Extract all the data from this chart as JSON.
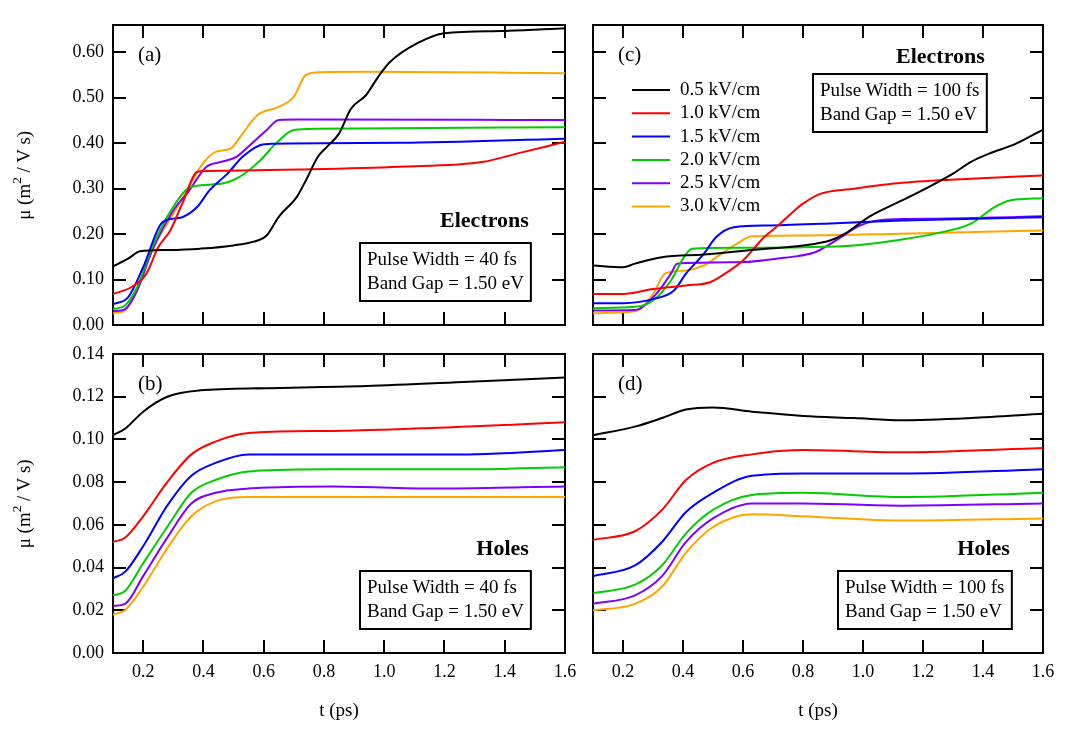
{
  "chart_data": [
    {
      "type": "line",
      "ylabel": "μ (m$^{2}$ / V s)",
      "xlim": [
        0.1,
        1.6
      ],
      "ylim": [
        0,
        0.66
      ],
      "xticks": [
        {
          "value": 0.2,
          "label": null
        },
        {
          "value": 0.4,
          "label": null
        },
        {
          "value": 0.6,
          "label": null
        },
        {
          "value": 0.8,
          "label": null
        },
        {
          "value": 1,
          "label": null
        },
        {
          "value": 1.2,
          "label": null
        },
        {
          "value": 1.4,
          "label": null
        },
        {
          "value": 1.6,
          "label": null
        }
      ],
      "yticks": [
        {
          "value": 0,
          "label": "0.00"
        },
        {
          "value": 0.1,
          "label": "0.10"
        },
        {
          "value": 0.2,
          "label": "0.20"
        },
        {
          "value": 0.3,
          "label": "0.30"
        },
        {
          "value": 0.4,
          "label": "0.40"
        },
        {
          "value": 0.5,
          "label": "0.50"
        },
        {
          "value": 0.6,
          "label": "0.60"
        }
      ],
      "tick_labels": "y",
      "annotations": [
        "(a)",
        "Electrons",
        "Pulse Width = 40 fs",
        "Band Gap = 1.50 eV"
      ],
      "series": [
        {
          "color": "#000000",
          "x": [
            0.1,
            0.15,
            0.19,
            0.28,
            0.39,
            0.5,
            0.58,
            0.61,
            0.65,
            0.71,
            0.74,
            0.78,
            0.81,
            0.85,
            0.89,
            0.94,
            0.98,
            1.02,
            1.11,
            1.2,
            1.39,
            1.6
          ],
          "values": [
            0.129,
            0.146,
            0.162,
            0.165,
            0.168,
            0.175,
            0.186,
            0.197,
            0.238,
            0.282,
            0.318,
            0.37,
            0.392,
            0.421,
            0.476,
            0.506,
            0.546,
            0.579,
            0.62,
            0.642,
            0.647,
            0.653
          ]
        },
        {
          "color": "#ff0000",
          "x": [
            0.1,
            0.16,
            0.21,
            0.25,
            0.29,
            0.33,
            0.38,
            0.41,
            0.72,
            1.05,
            1.33,
            1.44,
            1.6
          ],
          "values": [
            0.068,
            0.083,
            0.112,
            0.171,
            0.208,
            0.267,
            0.337,
            0.339,
            0.342,
            0.348,
            0.359,
            0.377,
            0.403
          ]
        },
        {
          "color": "#0000ff",
          "x": [
            0.1,
            0.15,
            0.2,
            0.26,
            0.3,
            0.33,
            0.38,
            0.42,
            0.48,
            0.53,
            0.59,
            0.63,
            1.05,
            1.6
          ],
          "values": [
            0.046,
            0.061,
            0.127,
            0.223,
            0.234,
            0.237,
            0.26,
            0.296,
            0.333,
            0.37,
            0.396,
            0.399,
            0.401,
            0.41
          ]
        },
        {
          "color": "#00cc00",
          "x": [
            0.1,
            0.14,
            0.18,
            0.23,
            0.3,
            0.36,
            0.45,
            0.52,
            0.59,
            0.64,
            0.7,
            0.78,
            1.6
          ],
          "values": [
            0.035,
            0.043,
            0.083,
            0.171,
            0.26,
            0.304,
            0.31,
            0.326,
            0.363,
            0.399,
            0.429,
            0.432,
            0.435
          ]
        },
        {
          "color": "#8000ff",
          "x": [
            0.1,
            0.14,
            0.18,
            0.23,
            0.3,
            0.35,
            0.41,
            0.46,
            0.51,
            0.56,
            0.61,
            0.65,
            0.72,
            1.6
          ],
          "values": [
            0.03,
            0.035,
            0.076,
            0.164,
            0.252,
            0.293,
            0.348,
            0.359,
            0.37,
            0.399,
            0.429,
            0.451,
            0.452,
            0.451
          ]
        },
        {
          "color": "#ffa500",
          "x": [
            0.1,
            0.14,
            0.18,
            0.23,
            0.3,
            0.34,
            0.39,
            0.44,
            0.49,
            0.53,
            0.58,
            0.65,
            0.7,
            0.74,
            0.79,
            0.94,
            1.6
          ],
          "values": [
            0.026,
            0.032,
            0.076,
            0.164,
            0.245,
            0.289,
            0.348,
            0.381,
            0.388,
            0.421,
            0.462,
            0.48,
            0.502,
            0.55,
            0.556,
            0.557,
            0.554
          ]
        }
      ]
    },
    {
      "type": "line",
      "xlim": [
        0.1,
        1.6
      ],
      "ylim": [
        0,
        0.66
      ],
      "xticks": [
        {
          "value": 0.2,
          "label": null
        },
        {
          "value": 0.4,
          "label": null
        },
        {
          "value": 0.6,
          "label": null
        },
        {
          "value": 0.8,
          "label": null
        },
        {
          "value": 1,
          "label": null
        },
        {
          "value": 1.2,
          "label": null
        },
        {
          "value": 1.4,
          "label": null
        },
        {
          "value": 1.6,
          "label": null
        }
      ],
      "yticks": [
        {
          "value": 0,
          "label": null
        },
        {
          "value": 0.1,
          "label": null
        },
        {
          "value": 0.2,
          "label": null
        },
        {
          "value": 0.3,
          "label": null
        },
        {
          "value": 0.4,
          "label": null
        },
        {
          "value": 0.5,
          "label": null
        },
        {
          "value": 0.6,
          "label": null
        }
      ],
      "tick_labels": false,
      "legend": "top left",
      "annotations": [
        "(c)",
        "Electrons",
        "Pulse Width = 100 fs",
        "Band Gap = 1.50 eV"
      ],
      "series": [
        {
          "name": "0.5 kV/cm",
          "color": "#000000",
          "x": [
            0.1,
            0.2,
            0.24,
            0.33,
            0.47,
            0.63,
            0.8,
            0.89,
            0.94,
            1.02,
            1.13,
            1.22,
            1.3,
            1.36,
            1.42,
            1.51,
            1.6
          ],
          "values": [
            0.131,
            0.127,
            0.135,
            0.149,
            0.155,
            0.165,
            0.175,
            0.186,
            0.201,
            0.238,
            0.274,
            0.304,
            0.333,
            0.359,
            0.377,
            0.399,
            0.43
          ]
        },
        {
          "name": "1.0 kV/cm",
          "color": "#ff0000",
          "x": [
            0.1,
            0.2,
            0.3,
            0.41,
            0.49,
            0.54,
            0.6,
            0.67,
            0.71,
            0.76,
            0.8,
            0.86,
            0.97,
            1.13,
            1.36,
            1.6
          ],
          "values": [
            0.068,
            0.068,
            0.079,
            0.087,
            0.094,
            0.113,
            0.142,
            0.193,
            0.215,
            0.245,
            0.267,
            0.289,
            0.3,
            0.313,
            0.322,
            0.329
          ]
        },
        {
          "name": "1.5 kV/cm",
          "color": "#0000ff",
          "x": [
            0.1,
            0.2,
            0.3,
            0.37,
            0.41,
            0.47,
            0.51,
            0.57,
            0.69,
            0.91,
            1.13,
            1.6
          ],
          "values": [
            0.048,
            0.048,
            0.057,
            0.076,
            0.113,
            0.157,
            0.193,
            0.215,
            0.219,
            0.224,
            0.23,
            0.237
          ]
        },
        {
          "name": "2.0 kV/cm",
          "color": "#00cc00",
          "x": [
            0.1,
            0.24,
            0.3,
            0.36,
            0.4,
            0.43,
            0.58,
            0.8,
            0.97,
            1.13,
            1.24,
            1.36,
            1.44,
            1.49,
            1.6
          ],
          "values": [
            0.037,
            0.04,
            0.054,
            0.098,
            0.146,
            0.168,
            0.17,
            0.171,
            0.175,
            0.188,
            0.201,
            0.223,
            0.26,
            0.274,
            0.279
          ]
        },
        {
          "name": "2.5 kV/cm",
          "color": "#8000ff",
          "x": [
            0.1,
            0.24,
            0.31,
            0.36,
            0.38,
            0.58,
            0.74,
            0.84,
            0.91,
            0.99,
            1.08,
            1.24,
            1.6
          ],
          "values": [
            0.032,
            0.033,
            0.068,
            0.113,
            0.135,
            0.138,
            0.148,
            0.16,
            0.186,
            0.219,
            0.232,
            0.234,
            0.239
          ]
        },
        {
          "name": "3.0 kV/cm",
          "color": "#ffa500",
          "x": [
            0.1,
            0.24,
            0.3,
            0.34,
            0.41,
            0.47,
            0.52,
            0.58,
            0.63,
            0.8,
            1.13,
            1.6
          ],
          "values": [
            0.026,
            0.03,
            0.068,
            0.113,
            0.12,
            0.131,
            0.153,
            0.179,
            0.195,
            0.197,
            0.201,
            0.208
          ]
        }
      ]
    },
    {
      "type": "line",
      "xlabel": "t (ps)",
      "ylabel": "μ (m$^{2}$ / V s)",
      "xlim": [
        0.1,
        1.6
      ],
      "ylim": [
        0,
        0.14
      ],
      "xticks": [
        0.2,
        0.4,
        0.6,
        0.8,
        {
          "value": 1,
          "label": "1.0"
        },
        1.2,
        1.4,
        1.6
      ],
      "yticks": [
        {
          "value": 0,
          "label": "0.00"
        },
        {
          "value": 0.02,
          "label": "0.02"
        },
        {
          "value": 0.04,
          "label": "0.04"
        },
        {
          "value": 0.06,
          "label": "0.06"
        },
        {
          "value": 0.08,
          "label": "0.08"
        },
        {
          "value": 0.1,
          "label": "0.10"
        },
        {
          "value": 0.12,
          "label": "0.12"
        },
        {
          "value": 0.14,
          "label": "0.14"
        }
      ],
      "annotations": [
        "(b)",
        "Holes",
        "Pulse Width = 40 fs",
        "Band Gap = 1.50 eV"
      ],
      "series": [
        {
          "color": "#000000",
          "x": [
            0.1,
            0.14,
            0.2,
            0.28,
            0.39,
            0.61,
            0.94,
            1.28,
            1.6
          ],
          "values": [
            0.102,
            0.105,
            0.113,
            0.12,
            0.123,
            0.124,
            0.125,
            0.127,
            0.129
          ]
        },
        {
          "color": "#ff0000",
          "x": [
            0.1,
            0.14,
            0.2,
            0.28,
            0.36,
            0.44,
            0.55,
            0.83,
            1.28,
            1.6
          ],
          "values": [
            0.052,
            0.054,
            0.064,
            0.08,
            0.093,
            0.099,
            0.103,
            0.104,
            0.106,
            0.108
          ]
        },
        {
          "color": "#0000ff",
          "x": [
            0.1,
            0.14,
            0.2,
            0.28,
            0.36,
            0.44,
            0.55,
            0.83,
            1.28,
            1.6
          ],
          "values": [
            0.035,
            0.038,
            0.05,
            0.069,
            0.083,
            0.089,
            0.093,
            0.093,
            0.093,
            0.095
          ]
        },
        {
          "color": "#00cc00",
          "x": [
            0.1,
            0.14,
            0.2,
            0.28,
            0.36,
            0.44,
            0.55,
            0.83,
            1.28,
            1.6
          ],
          "values": [
            0.027,
            0.029,
            0.042,
            0.059,
            0.075,
            0.081,
            0.085,
            0.086,
            0.086,
            0.087
          ]
        },
        {
          "color": "#8000ff",
          "x": [
            0.1,
            0.14,
            0.2,
            0.28,
            0.36,
            0.44,
            0.55,
            0.83,
            1.16,
            1.6
          ],
          "values": [
            0.022,
            0.023,
            0.036,
            0.054,
            0.07,
            0.075,
            0.077,
            0.078,
            0.077,
            0.078
          ]
        },
        {
          "color": "#ffa500",
          "x": [
            0.1,
            0.14,
            0.2,
            0.28,
            0.36,
            0.44,
            0.55,
            0.83,
            1.28,
            1.6
          ],
          "values": [
            0.018,
            0.02,
            0.031,
            0.049,
            0.064,
            0.071,
            0.073,
            0.073,
            0.073,
            0.073
          ]
        }
      ]
    },
    {
      "type": "line",
      "xlabel": "t (ps)",
      "xlim": [
        0.1,
        1.6
      ],
      "ylim": [
        0,
        0.14
      ],
      "xticks": [
        0.2,
        0.4,
        0.6,
        0.8,
        {
          "value": 1,
          "label": "1.0"
        },
        1.2,
        1.4,
        1.6
      ],
      "yticks": [
        {
          "value": 0,
          "label": null
        },
        {
          "value": 0.02,
          "label": null
        },
        {
          "value": 0.04,
          "label": null
        },
        {
          "value": 0.06,
          "label": null
        },
        {
          "value": 0.08,
          "label": null
        },
        {
          "value": 0.1,
          "label": null
        },
        {
          "value": 0.12,
          "label": null
        },
        {
          "value": 0.14,
          "label": null
        }
      ],
      "tick_labels": "x",
      "annotations": [
        "(d)",
        "Holes",
        "Pulse Width = 100 fs",
        "Band Gap = 1.50 eV"
      ],
      "series": [
        {
          "color": "#000000",
          "x": [
            0.1,
            0.24,
            0.33,
            0.41,
            0.5,
            0.63,
            0.8,
            0.97,
            1.13,
            1.36,
            1.6
          ],
          "values": [
            0.102,
            0.106,
            0.11,
            0.114,
            0.115,
            0.113,
            0.111,
            0.11,
            0.109,
            0.11,
            0.112
          ]
        },
        {
          "color": "#ff0000",
          "x": [
            0.1,
            0.24,
            0.33,
            0.41,
            0.5,
            0.63,
            0.8,
            1.13,
            1.6
          ],
          "values": [
            0.053,
            0.057,
            0.067,
            0.081,
            0.089,
            0.093,
            0.095,
            0.094,
            0.096
          ]
        },
        {
          "color": "#0000ff",
          "x": [
            0.1,
            0.24,
            0.33,
            0.41,
            0.5,
            0.63,
            0.8,
            1.13,
            1.6
          ],
          "values": [
            0.036,
            0.041,
            0.052,
            0.066,
            0.075,
            0.083,
            0.084,
            0.084,
            0.086
          ]
        },
        {
          "color": "#00cc00",
          "x": [
            0.1,
            0.24,
            0.33,
            0.41,
            0.5,
            0.63,
            0.8,
            1.13,
            1.6
          ],
          "values": [
            0.028,
            0.032,
            0.041,
            0.056,
            0.067,
            0.074,
            0.075,
            0.073,
            0.075
          ]
        },
        {
          "color": "#8000ff",
          "x": [
            0.1,
            0.24,
            0.33,
            0.41,
            0.5,
            0.63,
            0.8,
            1.13,
            1.6
          ],
          "values": [
            0.023,
            0.027,
            0.036,
            0.052,
            0.063,
            0.07,
            0.07,
            0.069,
            0.07
          ]
        },
        {
          "color": "#ffa500",
          "x": [
            0.1,
            0.24,
            0.33,
            0.41,
            0.5,
            0.63,
            0.8,
            1.13,
            1.6
          ],
          "values": [
            0.02,
            0.023,
            0.031,
            0.047,
            0.059,
            0.065,
            0.064,
            0.062,
            0.063
          ]
        }
      ]
    }
  ]
}
